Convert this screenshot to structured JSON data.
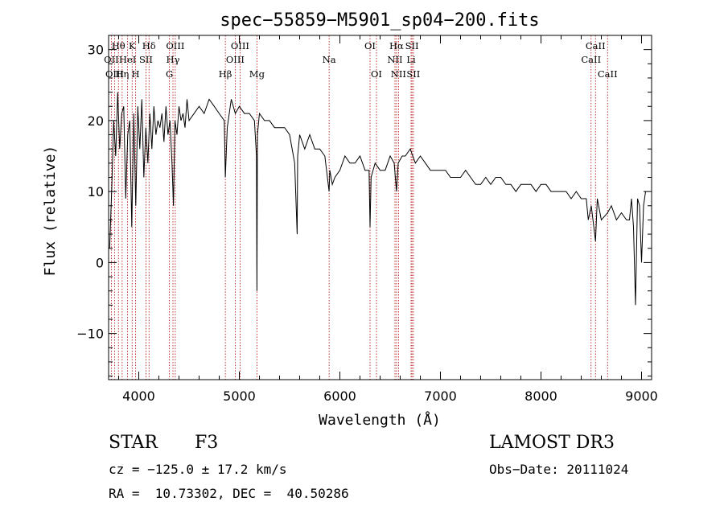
{
  "chart_data": {
    "type": "line",
    "title": "spec−55859−M5901_sp04−200.fits",
    "xlabel": "Wavelength (Å)",
    "ylabel": "Flux (relative)",
    "xlim": [
      3700,
      9100
    ],
    "ylim": [
      -16.5,
      32
    ],
    "xticks": [
      4000,
      5000,
      6000,
      7000,
      8000,
      9000
    ],
    "yticks": [
      -10,
      0,
      10,
      20,
      30
    ],
    "xtick_labels": [
      "4000",
      "5000",
      "6000",
      "7000",
      "8000",
      "9000"
    ],
    "ytick_labels": [
      "−10",
      "0",
      "10",
      "20",
      "30"
    ],
    "grid": false,
    "line_color": "#000000",
    "marker_color": "#b00000",
    "lines": [
      {
        "label": "Hθ",
        "x": 3798,
        "row": 0
      },
      {
        "label": "K",
        "x": 3934,
        "row": 0
      },
      {
        "label": "Hδ",
        "x": 4102,
        "row": 0
      },
      {
        "label": "OIII",
        "x": 4363,
        "row": 0
      },
      {
        "label": "OIII",
        "x": 5007,
        "row": 0
      },
      {
        "label": "OI",
        "x": 6300,
        "row": 0
      },
      {
        "label": "Hα",
        "x": 6563,
        "row": 0
      },
      {
        "label": "SII",
        "x": 6717,
        "row": 0
      },
      {
        "label": "CaII",
        "x": 8542,
        "row": 0
      },
      {
        "label": "OII",
        "x": 3727,
        "row": 1
      },
      {
        "label": "HeI",
        "x": 3889,
        "row": 1
      },
      {
        "label": "SII",
        "x": 4072,
        "row": 1
      },
      {
        "label": "Hγ",
        "x": 4340,
        "row": 1
      },
      {
        "label": "OIII",
        "x": 4959,
        "row": 1
      },
      {
        "label": "Na",
        "x": 5893,
        "row": 1
      },
      {
        "label": "NII",
        "x": 6548,
        "row": 1
      },
      {
        "label": "Li",
        "x": 6708,
        "row": 1
      },
      {
        "label": "CaII",
        "x": 8498,
        "row": 1
      },
      {
        "label": "OIII",
        "x": 3760,
        "row": 2
      },
      {
        "label": "Hη",
        "x": 3835,
        "row": 2
      },
      {
        "label": "H",
        "x": 3968,
        "row": 2
      },
      {
        "label": "G",
        "x": 4305,
        "row": 2
      },
      {
        "label": "Hβ",
        "x": 4861,
        "row": 2
      },
      {
        "label": "Mg",
        "x": 5175,
        "row": 2
      },
      {
        "label": "OI",
        "x": 6364,
        "row": 2
      },
      {
        "label": "NII",
        "x": 6583,
        "row": 2
      },
      {
        "label": "SII",
        "x": 6731,
        "row": 2
      },
      {
        "label": "CaII",
        "x": 8662,
        "row": 2
      }
    ],
    "spectrum": {
      "x": [
        3710,
        3730,
        3750,
        3770,
        3790,
        3810,
        3830,
        3850,
        3870,
        3890,
        3910,
        3930,
        3950,
        3970,
        3990,
        4010,
        4030,
        4050,
        4070,
        4090,
        4110,
        4130,
        4150,
        4170,
        4190,
        4210,
        4230,
        4250,
        4270,
        4290,
        4310,
        4330,
        4345,
        4360,
        4380,
        4400,
        4420,
        4440,
        4460,
        4480,
        4500,
        4550,
        4600,
        4650,
        4700,
        4750,
        4800,
        4850,
        4861,
        4880,
        4920,
        4960,
        5000,
        5050,
        5100,
        5150,
        5170,
        5175,
        5180,
        5200,
        5250,
        5300,
        5350,
        5400,
        5450,
        5500,
        5550,
        5575,
        5580,
        5600,
        5650,
        5700,
        5750,
        5800,
        5850,
        5893,
        5900,
        5925,
        5950,
        6000,
        6050,
        6100,
        6150,
        6200,
        6250,
        6290,
        6300,
        6310,
        6350,
        6400,
        6450,
        6500,
        6540,
        6563,
        6580,
        6620,
        6650,
        6700,
        6750,
        6800,
        6850,
        6900,
        6950,
        7000,
        7050,
        7100,
        7150,
        7200,
        7250,
        7300,
        7350,
        7400,
        7450,
        7500,
        7550,
        7600,
        7650,
        7700,
        7750,
        7800,
        7850,
        7900,
        7950,
        8000,
        8050,
        8100,
        8150,
        8200,
        8250,
        8300,
        8350,
        8400,
        8450,
        8470,
        8500,
        8542,
        8560,
        8600,
        8662,
        8700,
        8750,
        8800,
        8850,
        8880,
        8900,
        8920,
        8940,
        8960,
        8980,
        9000,
        9020,
        9040
      ],
      "y": [
        2,
        10,
        20,
        15,
        24,
        16,
        21,
        22,
        9,
        18,
        20,
        5,
        21,
        8,
        22,
        16,
        23,
        12,
        19,
        14,
        21,
        16,
        22,
        18,
        20,
        19,
        21,
        17,
        22,
        18,
        20,
        14,
        8,
        20,
        18,
        22,
        20,
        21,
        19,
        23,
        20,
        21,
        22,
        21,
        23,
        22,
        21,
        20,
        12,
        19,
        23,
        21,
        22,
        21,
        21,
        20,
        15,
        -4,
        18,
        21,
        20,
        20,
        19,
        19,
        19,
        18,
        14,
        4,
        15,
        18,
        16,
        18,
        16,
        16,
        15,
        10,
        13,
        11,
        12,
        13,
        15,
        14,
        14,
        15,
        13,
        13,
        5,
        12,
        14,
        13,
        13,
        15,
        14,
        10,
        14,
        15,
        15,
        16,
        14,
        15,
        14,
        13,
        13,
        13,
        13,
        12,
        12,
        12,
        13,
        12,
        11,
        11,
        12,
        11,
        12,
        12,
        11,
        11,
        10,
        11,
        11,
        11,
        10,
        11,
        11,
        10,
        10,
        10,
        10,
        9,
        10,
        9,
        9,
        6,
        8,
        3,
        9,
        6,
        7,
        8,
        6,
        7,
        6,
        6,
        9,
        5,
        -6,
        9,
        8,
        0,
        8,
        10
      ]
    }
  },
  "info": {
    "star_type": "STAR",
    "subclass": "F3",
    "cz": "cz = −125.0 ± 17.2 km/s",
    "radec": "RA =  10.73302, DEC =  40.50286",
    "survey": "LAMOST DR3",
    "obs_date": "Obs−Date: 20111024"
  }
}
